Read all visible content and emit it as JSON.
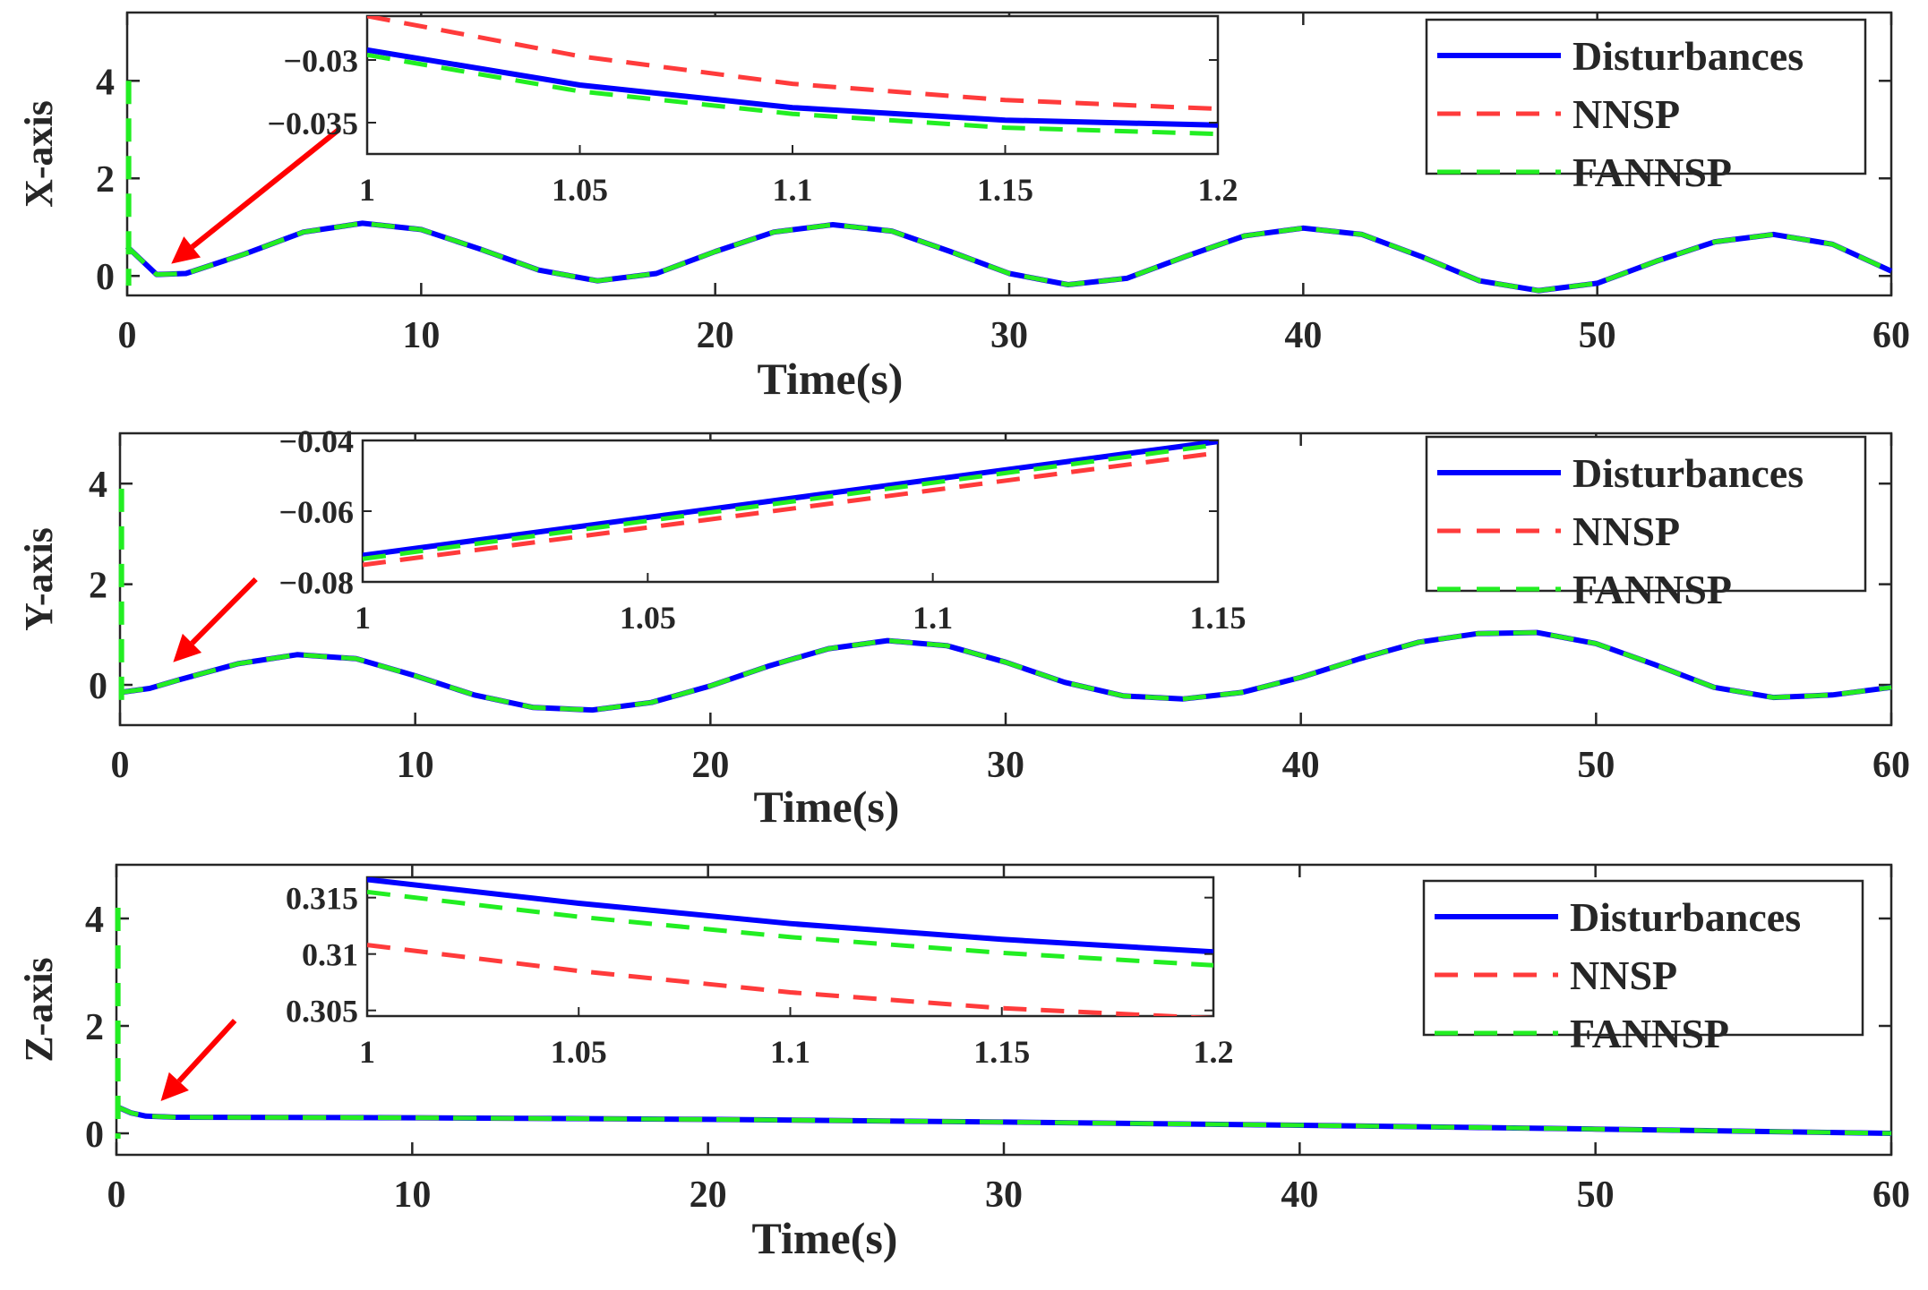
{
  "colors": {
    "disturbances": "#0000ff",
    "nnsp": "#ff3b3b",
    "fannsp": "#22ee22",
    "arrow": "#ff0000",
    "axis": "#262626"
  },
  "chart_data": [
    {
      "type": "line",
      "ylabel": "X-axis",
      "xlabel": "Time(s)",
      "xlim": [
        0,
        60
      ],
      "ylim": [
        -0.4,
        5.4
      ],
      "xticks": [
        "0",
        "10",
        "20",
        "30",
        "40",
        "50",
        "60"
      ],
      "yticks": [
        "0",
        "2",
        "4"
      ],
      "legend": [
        "Disturbances",
        "NNSP",
        "FANNSP"
      ],
      "x": [
        0,
        1,
        2,
        4,
        6,
        8,
        10,
        12,
        14,
        16,
        18,
        20,
        22,
        24,
        26,
        28,
        30,
        32,
        34,
        36,
        38,
        40,
        42,
        44,
        46,
        48,
        50,
        52,
        54,
        56,
        58,
        60
      ],
      "series": [
        {
          "name": "Disturbances",
          "values": [
            0.6,
            0.03,
            0.05,
            0.45,
            0.9,
            1.08,
            0.95,
            0.55,
            0.12,
            -0.1,
            0.05,
            0.5,
            0.9,
            1.05,
            0.92,
            0.5,
            0.05,
            -0.18,
            -0.05,
            0.4,
            0.82,
            0.98,
            0.85,
            0.4,
            -0.1,
            -0.3,
            -0.15,
            0.3,
            0.7,
            0.85,
            0.65,
            0.1
          ]
        },
        {
          "name": "NNSP",
          "values": [
            0.6,
            0.03,
            0.05,
            0.45,
            0.9,
            1.08,
            0.95,
            0.55,
            0.12,
            -0.1,
            0.05,
            0.5,
            0.9,
            1.05,
            0.92,
            0.5,
            0.05,
            -0.18,
            -0.05,
            0.4,
            0.82,
            0.98,
            0.85,
            0.4,
            -0.1,
            -0.3,
            -0.15,
            0.3,
            0.7,
            0.85,
            0.65,
            0.1
          ]
        },
        {
          "name": "FANNSP",
          "values": [
            0.6,
            0.03,
            0.05,
            0.45,
            0.9,
            1.08,
            0.95,
            0.55,
            0.12,
            -0.1,
            0.05,
            0.5,
            0.9,
            1.05,
            0.92,
            0.5,
            0.05,
            -0.18,
            -0.05,
            0.4,
            0.82,
            0.98,
            0.85,
            0.4,
            -0.1,
            -0.3,
            -0.15,
            0.3,
            0.7,
            0.85,
            0.65,
            0.1
          ]
        }
      ],
      "transient": {
        "x": 0.05,
        "y_top": 4.0,
        "y_bottom": -0.2
      },
      "arrow": {
        "from": [
          7.2,
          3.0
        ],
        "to": [
          1.5,
          0.25
        ]
      },
      "inset": {
        "xlim": [
          1,
          1.2
        ],
        "ylim": [
          -0.0375,
          -0.0265
        ],
        "xticks": [
          "1",
          "1.05",
          "1.1",
          "1.15",
          "1.2"
        ],
        "yticks": [
          "-0.03",
          "-0.035"
        ],
        "x": [
          1,
          1.05,
          1.1,
          1.15,
          1.2
        ],
        "series": [
          {
            "name": "Disturbances",
            "values": [
              -0.0292,
              -0.032,
              -0.0338,
              -0.0348,
              -0.0352
            ]
          },
          {
            "name": "NNSP",
            "values": [
              -0.0265,
              -0.0297,
              -0.0319,
              -0.0332,
              -0.0339
            ]
          },
          {
            "name": "FANNSP",
            "values": [
              -0.0296,
              -0.0325,
              -0.0343,
              -0.0354,
              -0.0359
            ]
          }
        ]
      }
    },
    {
      "type": "line",
      "ylabel": "Y-axis",
      "xlabel": "Time(s)",
      "xlim": [
        0,
        60
      ],
      "ylim": [
        -0.8,
        5.0
      ],
      "xticks": [
        "0",
        "10",
        "20",
        "30",
        "40",
        "50",
        "60"
      ],
      "yticks": [
        "0",
        "2",
        "4"
      ],
      "legend": [
        "Disturbances",
        "NNSP",
        "FANNSP"
      ],
      "x": [
        0,
        1,
        2,
        4,
        6,
        8,
        10,
        12,
        14,
        16,
        18,
        20,
        22,
        24,
        26,
        28,
        30,
        32,
        34,
        36,
        38,
        40,
        42,
        44,
        46,
        48,
        50,
        52,
        54,
        56,
        58,
        60
      ],
      "series": [
        {
          "name": "Disturbances",
          "values": [
            -0.15,
            -0.07,
            0.1,
            0.42,
            0.6,
            0.52,
            0.18,
            -0.2,
            -0.45,
            -0.5,
            -0.35,
            -0.02,
            0.38,
            0.72,
            0.88,
            0.78,
            0.45,
            0.05,
            -0.22,
            -0.28,
            -0.15,
            0.15,
            0.52,
            0.85,
            1.02,
            1.04,
            0.82,
            0.4,
            -0.05,
            -0.25,
            -0.2,
            -0.05
          ]
        },
        {
          "name": "NNSP",
          "values": [
            -0.15,
            -0.07,
            0.1,
            0.42,
            0.6,
            0.52,
            0.18,
            -0.2,
            -0.45,
            -0.5,
            -0.35,
            -0.02,
            0.38,
            0.72,
            0.88,
            0.78,
            0.45,
            0.05,
            -0.22,
            -0.28,
            -0.15,
            0.15,
            0.52,
            0.85,
            1.02,
            1.04,
            0.82,
            0.4,
            -0.05,
            -0.25,
            -0.2,
            -0.05
          ]
        },
        {
          "name": "FANNSP",
          "values": [
            -0.15,
            -0.07,
            0.1,
            0.42,
            0.6,
            0.52,
            0.18,
            -0.2,
            -0.45,
            -0.5,
            -0.35,
            -0.02,
            0.38,
            0.72,
            0.88,
            0.78,
            0.45,
            0.05,
            -0.22,
            -0.28,
            -0.15,
            0.15,
            0.52,
            0.85,
            1.02,
            1.04,
            0.82,
            0.4,
            -0.05,
            -0.25,
            -0.2,
            -0.05
          ]
        }
      ],
      "transient": {
        "x": 0.05,
        "y_top": 3.9,
        "y_bottom": -0.5
      },
      "arrow": {
        "from": [
          4.6,
          2.1
        ],
        "to": [
          1.8,
          0.45
        ]
      },
      "inset": {
        "xlim": [
          1,
          1.15
        ],
        "ylim": [
          -0.08,
          -0.04
        ],
        "xticks": [
          "1",
          "1.05",
          "1.1",
          "1.15"
        ],
        "yticks": [
          "-0.04",
          "-0.06",
          "-0.08"
        ],
        "x": [
          1,
          1.15
        ],
        "series": [
          {
            "name": "Disturbances",
            "values": [
              -0.0725,
              -0.0403
            ]
          },
          {
            "name": "NNSP",
            "values": [
              -0.0752,
              -0.0435
            ]
          },
          {
            "name": "FANNSP",
            "values": [
              -0.0735,
              -0.0412
            ]
          }
        ]
      }
    },
    {
      "type": "line",
      "ylabel": "Z-axis",
      "xlabel": "Time(s)",
      "xlim": [
        0,
        60
      ],
      "ylim": [
        -0.4,
        5.0
      ],
      "xticks": [
        "0",
        "10",
        "20",
        "30",
        "40",
        "50",
        "60"
      ],
      "yticks": [
        "0",
        "2",
        "4"
      ],
      "legend": [
        "Disturbances",
        "NNSP",
        "FANNSP"
      ],
      "x": [
        0,
        0.5,
        1,
        2,
        10,
        20,
        30,
        40,
        50,
        60
      ],
      "series": [
        {
          "name": "Disturbances",
          "values": [
            0.5,
            0.38,
            0.32,
            0.3,
            0.29,
            0.26,
            0.21,
            0.15,
            0.08,
            0.0
          ]
        },
        {
          "name": "NNSP",
          "values": [
            0.5,
            0.38,
            0.32,
            0.3,
            0.29,
            0.26,
            0.21,
            0.15,
            0.08,
            0.0
          ]
        },
        {
          "name": "FANNSP",
          "values": [
            0.5,
            0.38,
            0.32,
            0.3,
            0.29,
            0.26,
            0.21,
            0.15,
            0.08,
            0.0
          ]
        }
      ],
      "transient": {
        "x": 0.05,
        "y_top": 4.2,
        "y_bottom": -0.1
      },
      "arrow": {
        "from": [
          4.0,
          2.1
        ],
        "to": [
          1.5,
          0.6
        ]
      },
      "inset": {
        "xlim": [
          1,
          1.2
        ],
        "ylim": [
          0.3045,
          0.3168
        ],
        "xticks": [
          "1",
          "1.05",
          "1.1",
          "1.15",
          "1.2"
        ],
        "yticks": [
          "0.315",
          "0.31",
          "0.305"
        ],
        "x": [
          1,
          1.05,
          1.1,
          1.15,
          1.2
        ],
        "series": [
          {
            "name": "Disturbances",
            "values": [
              0.3166,
              0.3145,
              0.3127,
              0.3113,
              0.3102
            ]
          },
          {
            "name": "NNSP",
            "values": [
              0.3108,
              0.3085,
              0.3066,
              0.3052,
              0.3043
            ]
          },
          {
            "name": "FANNSP",
            "values": [
              0.3155,
              0.3133,
              0.3115,
              0.3101,
              0.309
            ]
          }
        ]
      }
    }
  ]
}
